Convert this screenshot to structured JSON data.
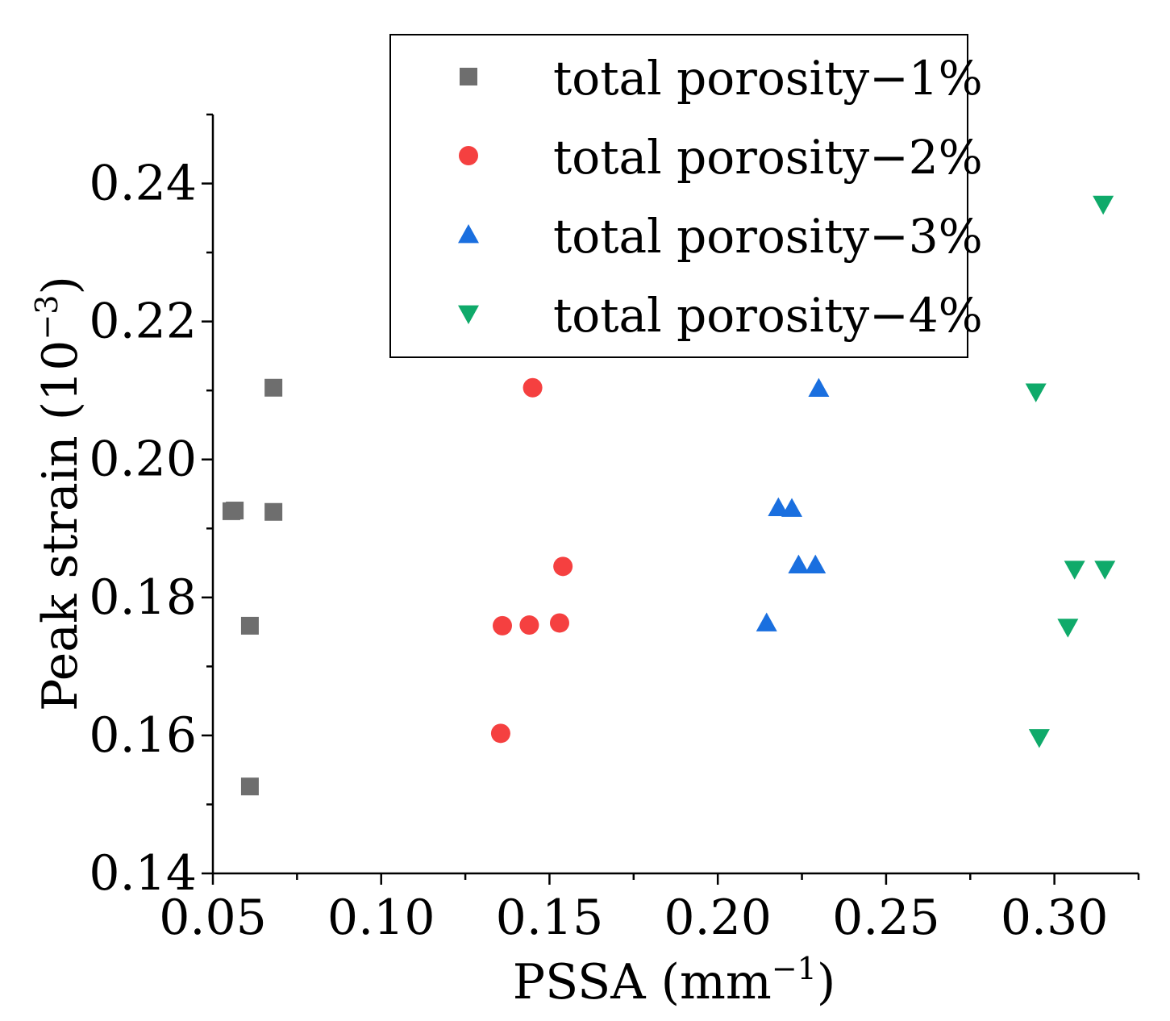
{
  "chart_data": {
    "type": "scatter",
    "title": "",
    "xlabel": "PSSA (mm",
    "xlabel_sup": "−1",
    "xlabel_end": ")",
    "ylabel": "Peak strain (10",
    "ylabel_sup": "−3",
    "ylabel_end": ")",
    "xlim": [
      0.05,
      0.325
    ],
    "ylim": [
      0.14,
      0.25
    ],
    "xticks": [
      0.05,
      0.1,
      0.15,
      0.2,
      0.25,
      0.3
    ],
    "xtick_labels": [
      "0.05",
      "0.10",
      "0.15",
      "0.20",
      "0.25",
      "0.30"
    ],
    "yticks": [
      0.14,
      0.16,
      0.18,
      0.2,
      0.22,
      0.24
    ],
    "ytick_labels": [
      "0.14",
      "0.16",
      "0.18",
      "0.20",
      "0.22",
      "0.24"
    ],
    "x_minor_step": 0.025,
    "y_minor_step": 0.01,
    "grid": false,
    "legend_position": "top-center",
    "series": [
      {
        "name": "total porosity−1%",
        "marker": "square",
        "color": "#6e6e6e",
        "points": [
          [
            0.0555,
            0.1925
          ],
          [
            0.0565,
            0.1926
          ],
          [
            0.068,
            0.1924
          ],
          [
            0.068,
            0.2104
          ],
          [
            0.061,
            0.1759
          ],
          [
            0.061,
            0.1526
          ]
        ]
      },
      {
        "name": "total porosity−2%",
        "marker": "circle",
        "color": "#f54040",
        "points": [
          [
            0.145,
            0.2104
          ],
          [
            0.154,
            0.1845
          ],
          [
            0.136,
            0.1759
          ],
          [
            0.144,
            0.176
          ],
          [
            0.153,
            0.1763
          ],
          [
            0.1355,
            0.1603
          ]
        ]
      },
      {
        "name": "total porosity−3%",
        "marker": "triangle-up",
        "color": "#1a6fdf",
        "points": [
          [
            0.23,
            0.2103
          ],
          [
            0.218,
            0.193
          ],
          [
            0.222,
            0.1929
          ],
          [
            0.224,
            0.1847
          ],
          [
            0.229,
            0.1847
          ],
          [
            0.2145,
            0.1763
          ]
        ]
      },
      {
        "name": "total porosity−4%",
        "marker": "triangle-down",
        "color": "#0faa6a",
        "points": [
          [
            0.3145,
            0.237
          ],
          [
            0.2945,
            0.2098
          ],
          [
            0.306,
            0.1841
          ],
          [
            0.315,
            0.1841
          ],
          [
            0.304,
            0.1757
          ],
          [
            0.2955,
            0.1597
          ]
        ]
      }
    ]
  }
}
